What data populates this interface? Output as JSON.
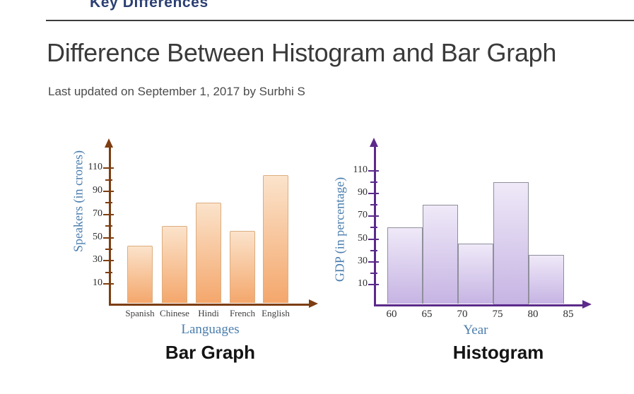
{
  "header": {
    "logo_text": "Key Differences"
  },
  "article": {
    "title": "Difference Between Histogram and Bar Graph",
    "byline": "Last updated on September 1, 2017 by Surbhi S"
  },
  "chart_data": [
    {
      "type": "bar",
      "title": "Bar Graph",
      "xlabel": "Languages",
      "ylabel": "Speakers (in crores)",
      "categories": [
        "Spanish",
        "Chinese",
        "Hindi",
        "French",
        "English"
      ],
      "values": [
        43,
        60,
        80,
        56,
        104
      ],
      "y_ticks": [
        10,
        30,
        50,
        70,
        90,
        110
      ],
      "y_minor_ticks": [
        20,
        40,
        60,
        80,
        100
      ],
      "ylim": [
        0,
        120
      ],
      "grid": false,
      "legend": "none",
      "colors": {
        "axis": "#7d3e12",
        "bar_top": "#fbe3cb",
        "bar_bottom": "#f4a76c",
        "bar_border": "#dcae80",
        "axis_label": "#4a7dad",
        "tick_text": "#2e2e2e",
        "caption": "#141414"
      }
    },
    {
      "type": "histogram",
      "title": "Histogram",
      "xlabel": "Year",
      "ylabel": "GDP (in percentage)",
      "bin_edges": [
        60,
        65,
        70,
        75,
        80,
        85
      ],
      "values": [
        60,
        80,
        46,
        100,
        36
      ],
      "y_ticks": [
        10,
        30,
        50,
        70,
        90,
        110
      ],
      "y_minor_ticks": [
        20,
        40,
        60,
        80,
        100
      ],
      "ylim": [
        0,
        120
      ],
      "grid": false,
      "legend": "none",
      "colors": {
        "axis": "#5b2a8a",
        "bar_top": "#efe9f8",
        "bar_bottom": "#c6b4e3",
        "bar_border": "#8f8f9b",
        "axis_label": "#4a7dad",
        "tick_text": "#2e2e2e",
        "caption": "#141414"
      }
    }
  ]
}
